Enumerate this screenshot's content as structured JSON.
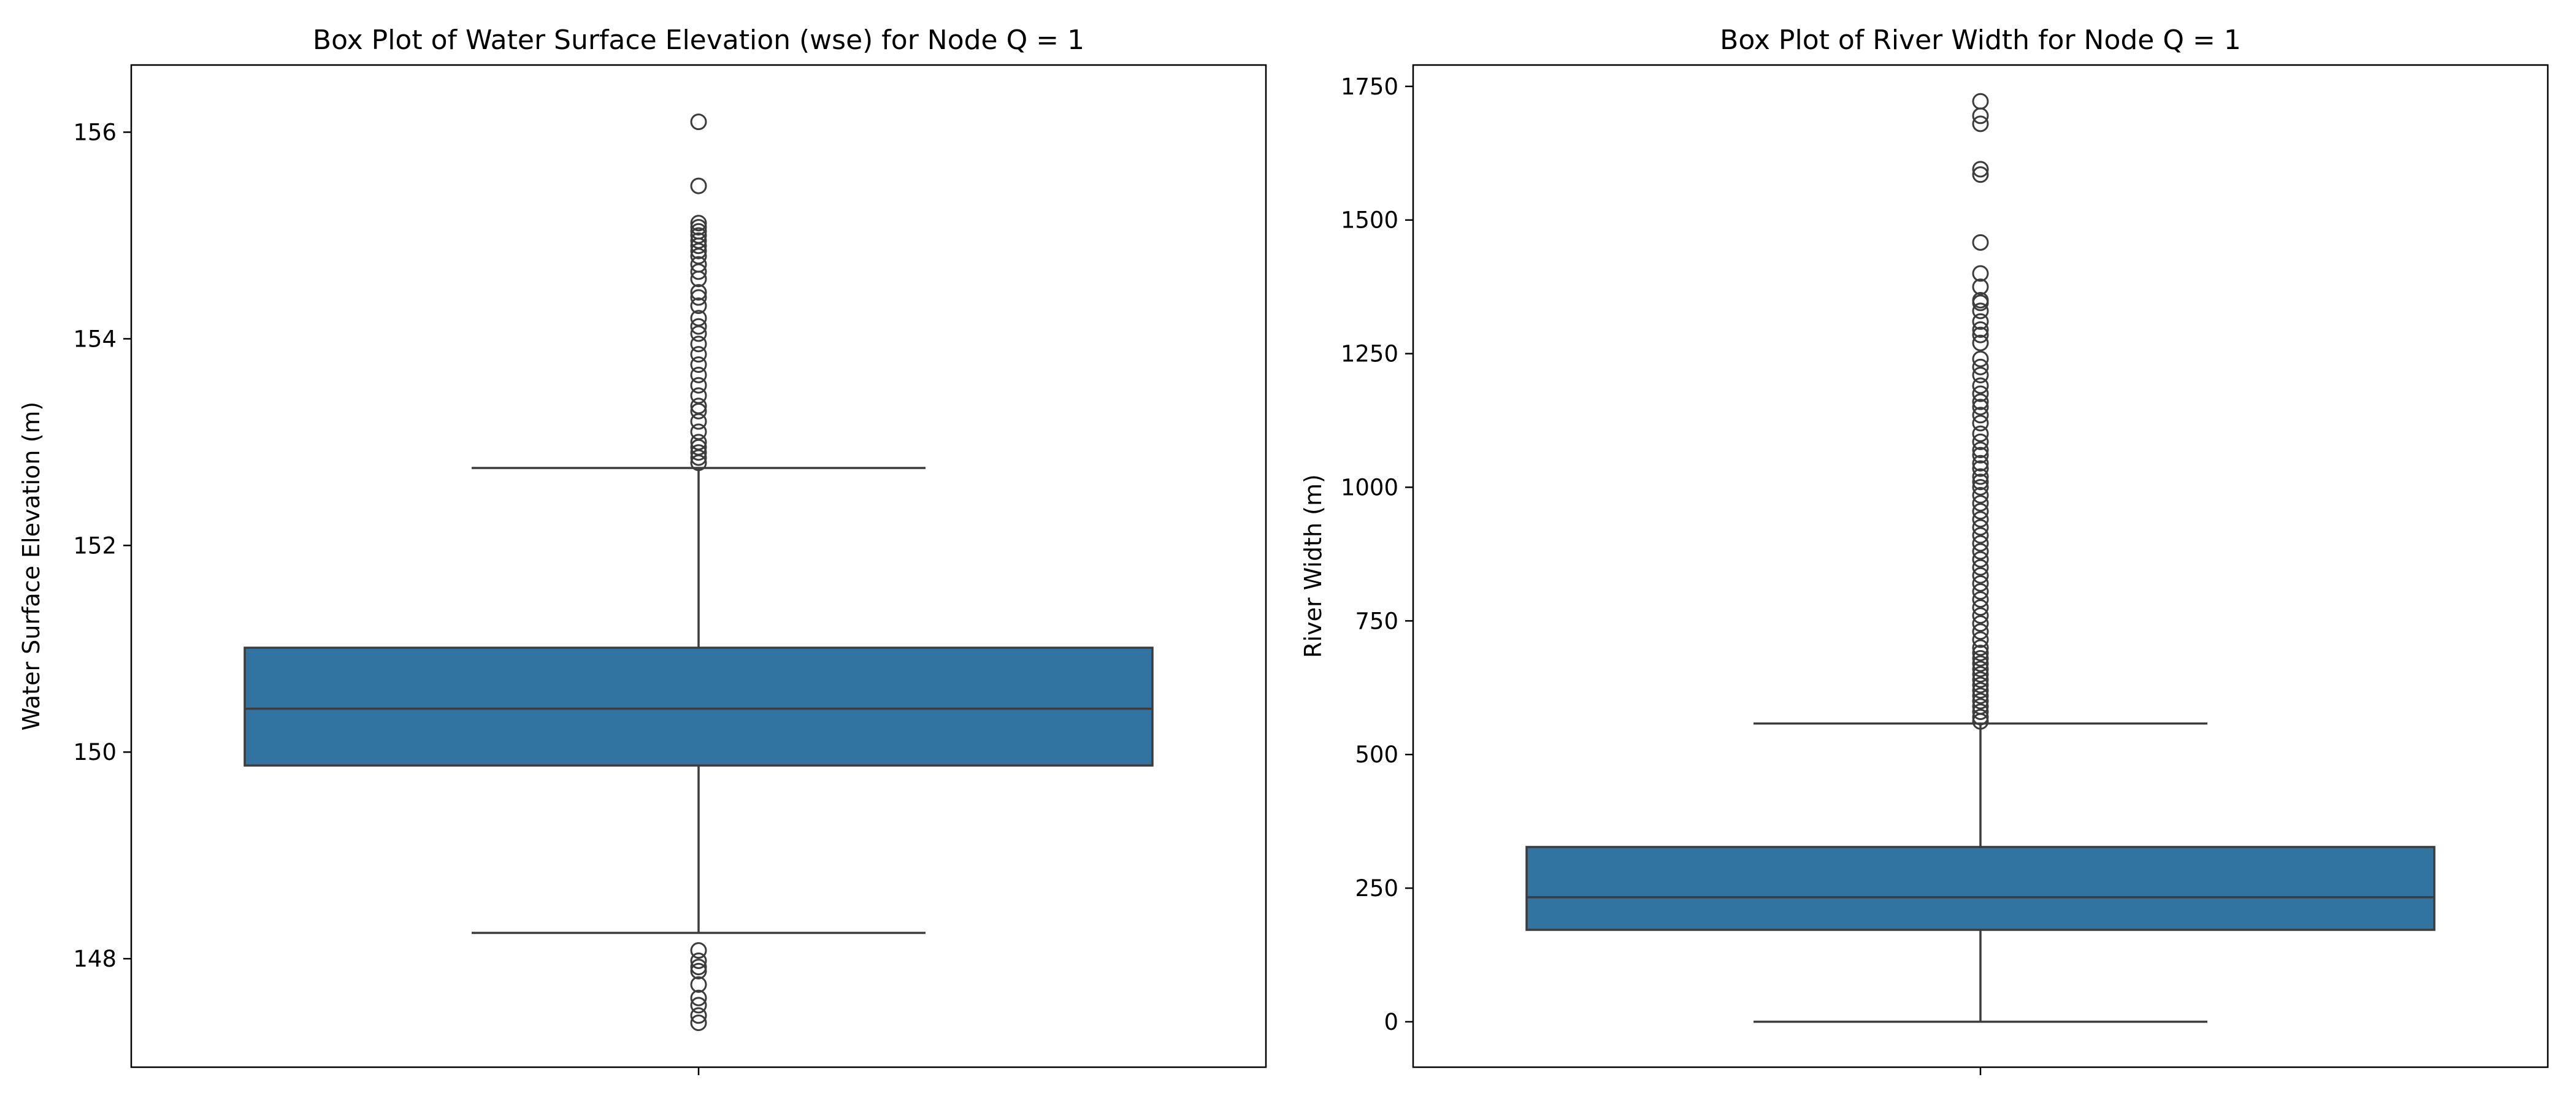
{
  "chart_data": [
    {
      "type": "box",
      "title": "Box Plot of Water Surface Elevation (wse) for Node Q = 1",
      "xlabel": "",
      "ylabel": "Water Surface Elevation (m)",
      "ylim": [
        146.95,
        156.65
      ],
      "yticks": [
        148,
        150,
        152,
        154,
        156
      ],
      "ytick_labels": [
        "148",
        "150",
        "152",
        "154",
        "156"
      ],
      "box_color": "#3274a1",
      "line_color": "#3c3c3c",
      "grid": false,
      "box": {
        "whisker_low": 148.25,
        "q1": 149.87,
        "median": 150.42,
        "q3": 151.01,
        "whisker_high": 152.75
      },
      "outliers": [
        156.1,
        155.48,
        155.12,
        155.08,
        155.04,
        155.0,
        154.95,
        154.9,
        154.85,
        154.8,
        154.72,
        154.65,
        154.58,
        154.45,
        154.4,
        154.32,
        154.2,
        154.12,
        154.05,
        153.95,
        153.85,
        153.75,
        153.65,
        153.55,
        153.45,
        153.35,
        153.3,
        153.2,
        153.1,
        153.0,
        152.95,
        152.9,
        152.85,
        152.8,
        148.08,
        147.98,
        147.92,
        147.88,
        147.75,
        147.62,
        147.55,
        147.45,
        147.38
      ]
    },
    {
      "type": "box",
      "title": "Box Plot of River Width for Node Q = 1",
      "xlabel": "",
      "ylabel": "River Width (m)",
      "ylim": [
        -85,
        1790
      ],
      "yticks": [
        0,
        250,
        500,
        750,
        1000,
        1250,
        1500,
        1750
      ],
      "ytick_labels": [
        "0",
        "250",
        "500",
        "750",
        "1000",
        "1250",
        "1500",
        "1750"
      ],
      "box_color": "#3274a1",
      "line_color": "#3c3c3c",
      "grid": false,
      "box": {
        "whisker_low": 0,
        "q1": 172,
        "median": 233,
        "q3": 327,
        "whisker_high": 558
      },
      "outliers": [
        1722,
        1695,
        1680,
        1595,
        1585,
        1458,
        1400,
        1375,
        1350,
        1345,
        1330,
        1310,
        1295,
        1285,
        1270,
        1240,
        1225,
        1210,
        1190,
        1175,
        1160,
        1150,
        1135,
        1120,
        1100,
        1085,
        1070,
        1060,
        1045,
        1035,
        1020,
        1010,
        1000,
        985,
        970,
        955,
        940,
        925,
        910,
        895,
        880,
        865,
        850,
        835,
        820,
        805,
        790,
        775,
        760,
        745,
        730,
        715,
        700,
        690,
        680,
        670,
        660,
        650,
        640,
        630,
        620,
        610,
        600,
        590,
        580,
        570,
        562
      ]
    }
  ]
}
